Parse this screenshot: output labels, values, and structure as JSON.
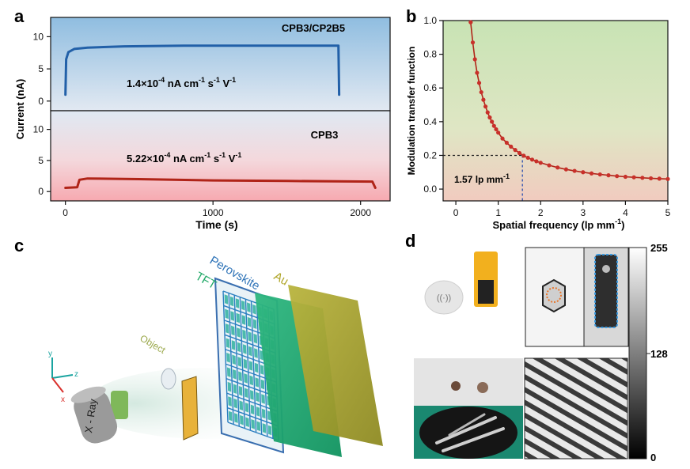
{
  "panels": {
    "a": "a",
    "b": "b",
    "c": "c",
    "d": "d"
  },
  "chart_data": [
    {
      "type": "line",
      "panel": "a",
      "ylabel": "Current (nA)",
      "xlabel": "Time (s)",
      "xlim": [
        -100,
        2200
      ],
      "x_ticks": [
        0,
        1000,
        2000
      ],
      "x_tick_labels": [
        "0",
        "1000",
        "2000"
      ],
      "subplots": [
        {
          "name": "CPB3/CP2B5",
          "annotation": "1.4×10-4 nA cm-1 s-1 V-1",
          "ylim": [
            -1.5,
            13
          ],
          "y_ticks": [
            0,
            5,
            10
          ],
          "y_tick_labels": [
            "0",
            "5",
            "10"
          ],
          "series_color": "#2260a8",
          "points": [
            [
              0,
              1.0
            ],
            [
              5,
              6.5
            ],
            [
              20,
              7.6
            ],
            [
              60,
              8.1
            ],
            [
              150,
              8.3
            ],
            [
              400,
              8.5
            ],
            [
              800,
              8.6
            ],
            [
              1850,
              8.6
            ],
            [
              1855,
              1.0
            ]
          ]
        },
        {
          "name": "CPB3",
          "annotation": "5.22×10-4 nA cm-1 s-1 V-1",
          "ylim": [
            -1.5,
            13
          ],
          "y_ticks": [
            0,
            5,
            10
          ],
          "y_tick_labels": [
            "0",
            "5",
            "10"
          ],
          "series_color": "#b02418",
          "points": [
            [
              0,
              0.6
            ],
            [
              80,
              0.7
            ],
            [
              95,
              1.9
            ],
            [
              150,
              2.1
            ],
            [
              500,
              2.0
            ],
            [
              1000,
              1.8
            ],
            [
              1500,
              1.7
            ],
            [
              2080,
              1.6
            ],
            [
              2100,
              0.6
            ]
          ]
        }
      ]
    },
    {
      "type": "line",
      "panel": "b",
      "ylabel": "Modulation transfer function",
      "xlabel": "Spatial frequency (lp mm-1)",
      "xlim": [
        -0.3,
        5.0
      ],
      "ylim": [
        -0.07,
        1.0
      ],
      "x_ticks": [
        0,
        1,
        2,
        3,
        4,
        5
      ],
      "x_tick_labels": [
        "0",
        "1",
        "2",
        "3",
        "4",
        "5"
      ],
      "y_ticks": [
        0.0,
        0.2,
        0.4,
        0.6,
        0.8,
        1.0
      ],
      "y_tick_labels": [
        "0.0",
        "0.2",
        "0.4",
        "0.6",
        "0.8",
        "1.0"
      ],
      "annotation": "1.57 lp mm-1",
      "marker_point": [
        1.57,
        0.2
      ],
      "curve_x": [
        0.35,
        0.4,
        0.45,
        0.5,
        0.55,
        0.6,
        0.65,
        0.7,
        0.75,
        0.8,
        0.85,
        0.9,
        0.95,
        1.0,
        1.1,
        1.2,
        1.3,
        1.4,
        1.5,
        1.6,
        1.7,
        1.8,
        1.9,
        2.0,
        2.2,
        2.4,
        2.6,
        2.8,
        3.0,
        3.2,
        3.4,
        3.6,
        3.8,
        4.0,
        4.2,
        4.4,
        4.6,
        4.8,
        5.0
      ],
      "curve_y": [
        0.99,
        0.87,
        0.77,
        0.69,
        0.63,
        0.575,
        0.53,
        0.49,
        0.455,
        0.425,
        0.4,
        0.375,
        0.355,
        0.335,
        0.3,
        0.275,
        0.252,
        0.232,
        0.214,
        0.198,
        0.186,
        0.175,
        0.165,
        0.156,
        0.141,
        0.128,
        0.117,
        0.108,
        0.1,
        0.093,
        0.087,
        0.082,
        0.077,
        0.073,
        0.07,
        0.067,
        0.064,
        0.062,
        0.06
      ]
    }
  ],
  "panel_c": {
    "labels": {
      "perovskite": "Perovskite",
      "au": "Au",
      "tft": "TFT",
      "object": "Object",
      "xray": "X - Ray",
      "axis_x": "x",
      "axis_y": "y",
      "axis_z": "z"
    }
  },
  "panel_d": {
    "colorbar": {
      "max": "255",
      "mid": "128",
      "min": "0"
    }
  },
  "colors": {
    "blue_series": "#2260a8",
    "red_series": "#b02418",
    "top_bg_blue": "#9cc4e4",
    "bottom_bg_red": "#f2a9ae"
  }
}
